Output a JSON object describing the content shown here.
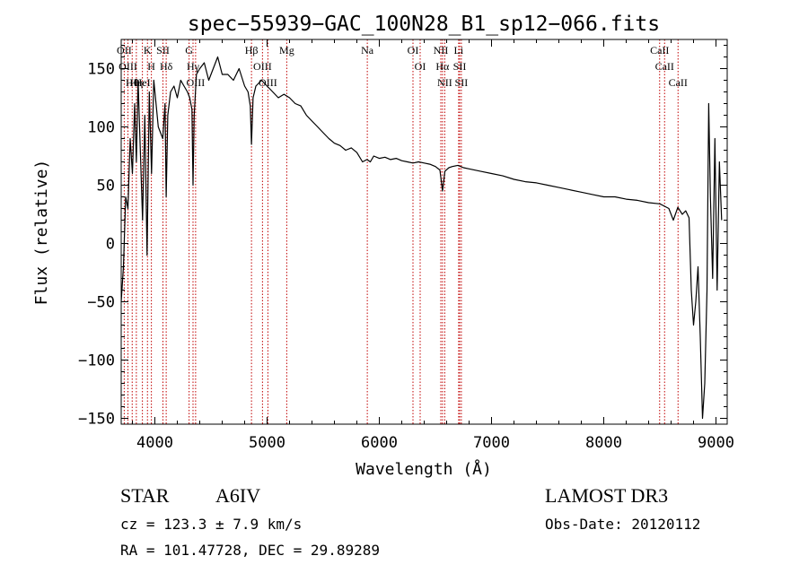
{
  "chart_data": {
    "type": "line",
    "title": "spec−55939−GAC_100N28_B1_sp12−066.fits",
    "xlabel": "Wavelength (Å)",
    "ylabel": "Flux (relative)",
    "xlim": [
      3700,
      9100
    ],
    "ylim": [
      -155,
      175
    ],
    "xticks": [
      4000,
      5000,
      6000,
      7000,
      8000,
      9000
    ],
    "yticks": [
      -150,
      -100,
      -50,
      0,
      50,
      100,
      150
    ],
    "ytick_labels": [
      "−150",
      "−100",
      "−50",
      "0",
      "50",
      "100",
      "150"
    ],
    "series": [
      {
        "name": "flux",
        "x": [
          3700,
          3720,
          3740,
          3760,
          3780,
          3800,
          3820,
          3835,
          3850,
          3870,
          3890,
          3910,
          3930,
          3950,
          3970,
          3990,
          4010,
          4030,
          4050,
          4070,
          4090,
          4101,
          4115,
          4140,
          4170,
          4200,
          4230,
          4260,
          4290,
          4310,
          4330,
          4340,
          4350,
          4370,
          4400,
          4440,
          4480,
          4520,
          4560,
          4600,
          4650,
          4700,
          4750,
          4800,
          4830,
          4850,
          4861,
          4875,
          4900,
          4950,
          5000,
          5050,
          5100,
          5150,
          5200,
          5250,
          5300,
          5350,
          5400,
          5450,
          5500,
          5550,
          5600,
          5650,
          5700,
          5750,
          5800,
          5850,
          5890,
          5920,
          5950,
          6000,
          6050,
          6100,
          6150,
          6200,
          6250,
          6300,
          6350,
          6400,
          6450,
          6500,
          6540,
          6563,
          6585,
          6620,
          6650,
          6700,
          6750,
          6800,
          6900,
          7000,
          7100,
          7200,
          7300,
          7400,
          7500,
          7600,
          7700,
          7800,
          7900,
          8000,
          8100,
          8200,
          8300,
          8400,
          8500,
          8540,
          8580,
          8620,
          8660,
          8700,
          8730,
          8760,
          8780,
          8800,
          8820,
          8840,
          8860,
          8880,
          8900,
          8920,
          8935,
          8950,
          8970,
          8990,
          9010,
          9030,
          9050
        ],
        "values": [
          -50,
          -20,
          40,
          30,
          90,
          60,
          120,
          70,
          140,
          80,
          20,
          110,
          -10,
          130,
          60,
          140,
          120,
          100,
          95,
          90,
          120,
          40,
          110,
          130,
          135,
          125,
          140,
          135,
          130,
          125,
          115,
          50,
          110,
          145,
          150,
          155,
          140,
          150,
          160,
          145,
          145,
          140,
          150,
          135,
          130,
          118,
          85,
          125,
          135,
          140,
          135,
          130,
          125,
          128,
          125,
          120,
          118,
          110,
          105,
          100,
          95,
          90,
          86,
          84,
          80,
          82,
          78,
          70,
          72,
          70,
          75,
          73,
          74,
          72,
          73,
          71,
          70,
          69,
          70,
          69,
          68,
          66,
          63,
          45,
          62,
          65,
          66,
          67,
          65,
          64,
          62,
          60,
          58,
          55,
          53,
          52,
          50,
          48,
          46,
          44,
          42,
          40,
          40,
          38,
          37,
          35,
          34,
          32,
          30,
          20,
          31,
          25,
          28,
          22,
          -40,
          -70,
          -50,
          -20,
          -80,
          -150,
          -120,
          -40,
          120,
          40,
          -30,
          90,
          -40,
          70,
          20
        ]
      }
    ],
    "lines": [
      {
        "name": "Hθ",
        "wl": 3798
      },
      {
        "name": "OII",
        "wl": 3727
      },
      {
        "name": "OIII",
        "wl": 3760
      },
      {
        "name": "Hη",
        "wl": 3835
      },
      {
        "name": "K",
        "wl": 3934
      },
      {
        "name": "HeI",
        "wl": 3889
      },
      {
        "name": "H",
        "wl": 3969
      },
      {
        "name": "SII",
        "wl": 4072
      },
      {
        "name": "Hδ",
        "wl": 4101
      },
      {
        "name": "OIII",
        "wl": 4363
      },
      {
        "name": "Hγ",
        "wl": 4340
      },
      {
        "name": "G",
        "wl": 4305
      },
      {
        "name": "Hβ",
        "wl": 4861
      },
      {
        "name": "OIII",
        "wl": 5007
      },
      {
        "name": "OIII",
        "wl": 4959
      },
      {
        "name": "Mg",
        "wl": 5175
      },
      {
        "name": "Na",
        "wl": 5893
      },
      {
        "name": "OI",
        "wl": 6300
      },
      {
        "name": "OI",
        "wl": 6364
      },
      {
        "name": "Hα",
        "wl": 6563
      },
      {
        "name": "NII",
        "wl": 6548
      },
      {
        "name": "NII",
        "wl": 6583
      },
      {
        "name": "SII",
        "wl": 6716
      },
      {
        "name": "Li",
        "wl": 6707
      },
      {
        "name": "SII",
        "wl": 6731
      },
      {
        "name": "CaII",
        "wl": 8542
      },
      {
        "name": "CaII",
        "wl": 8498
      },
      {
        "name": "CaII",
        "wl": 8662
      }
    ]
  },
  "info": {
    "object_class": "STAR",
    "subclass": "A6IV",
    "survey": "LAMOST DR3",
    "cz": "cz = 123.3 ± 7.9 km/s",
    "obs_date": "Obs-Date: 20120112",
    "coords": "RA = 101.47728, DEC =  29.89289"
  }
}
